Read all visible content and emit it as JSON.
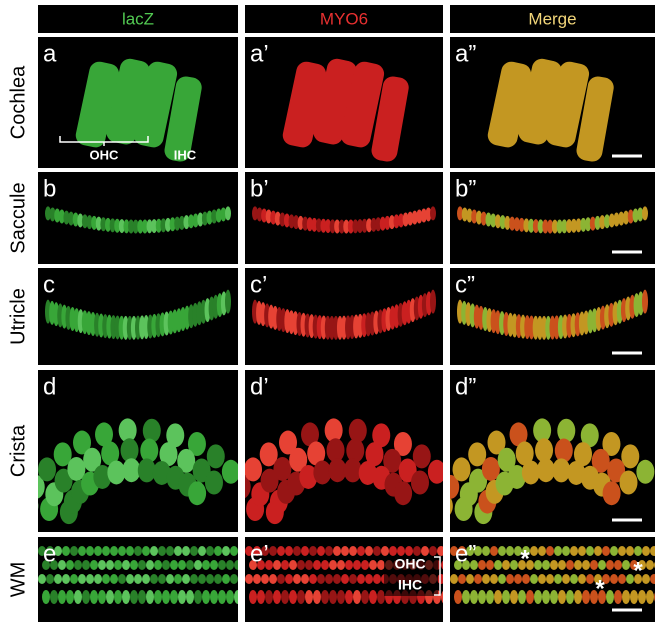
{
  "columns": [
    "lacZ",
    "MYO6",
    "Merge"
  ],
  "rows": [
    {
      "label": "Cochlea",
      "panels": [
        "a",
        "a’",
        "a”"
      ]
    },
    {
      "label": "Saccule",
      "panels": [
        "b",
        "b’",
        "b”"
      ]
    },
    {
      "label": "Utricle",
      "panels": [
        "c",
        "c’",
        "c”"
      ]
    },
    {
      "label": "Crista",
      "panels": [
        "d",
        "d’",
        "d”"
      ]
    },
    {
      "label": "WM",
      "panels": [
        "e",
        "e’",
        "e”"
      ]
    }
  ],
  "annotations": {
    "cochlea_ohc": "OHC",
    "cochlea_ihc": "IHC",
    "wm_ohc": "OHC",
    "wm_ihc": "IHC",
    "asterisks": [
      "*",
      "*",
      "*"
    ]
  }
}
